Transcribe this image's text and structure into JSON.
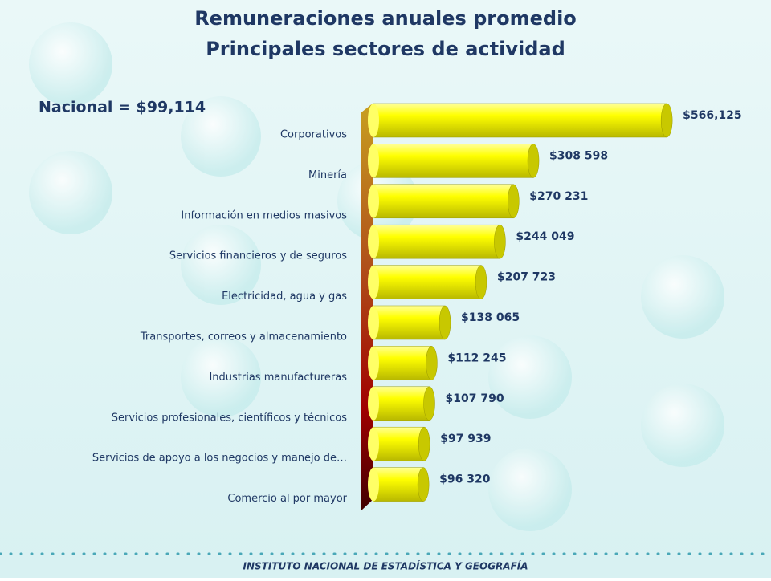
{
  "chart_data": {
    "type": "bar",
    "orientation": "horizontal",
    "title": "Remuneraciones anuales promedio",
    "subtitle": "Principales sectores de actividad",
    "annotation": "Nacional = $99,114",
    "footer": "INSTITUTO NACIONAL DE ESTADÍSTICA Y GEOGRAFÍA",
    "categories": [
      "Corporativos",
      "Minería",
      "Información en medios masivos",
      "Servicios financieros y de seguros",
      "Electricidad, agua y gas",
      "Transportes, correos y almacenamiento",
      "Industrias manufactureras",
      "Servicios profesionales, científicos y técnicos",
      "Servicios de apoyo a los negocios y manejo de…",
      "Comercio al por mayor"
    ],
    "values": [
      566125,
      308598,
      270231,
      244049,
      207723,
      138065,
      112245,
      107790,
      97939,
      96320
    ],
    "value_labels": [
      "$566,125",
      "$308 598",
      "$270 231",
      "$244 049",
      "$207 723",
      "$138 065",
      "$112 245",
      "$107 790",
      "$97 939",
      "$96 320"
    ],
    "color": "#ffff00",
    "xlim": [
      0,
      600000
    ]
  }
}
